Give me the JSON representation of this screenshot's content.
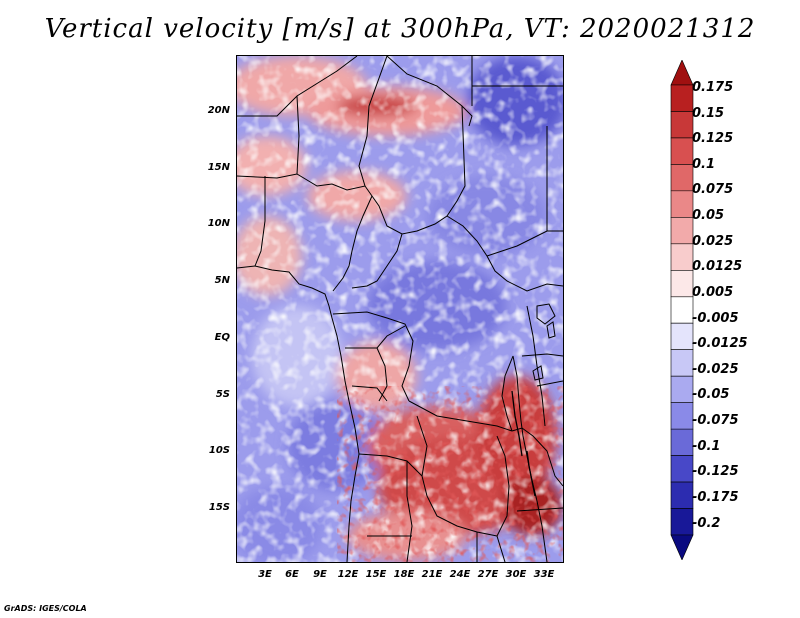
{
  "title": "Vertical velocity [m/s] at 300hPa, VT: 2020021312",
  "credit": "GrADS: IGES/COLA",
  "lat_labels": [
    "20N",
    "15N",
    "10N",
    "5N",
    "EQ",
    "5S",
    "10S",
    "15S"
  ],
  "lon_labels": [
    "3E",
    "6E",
    "9E",
    "12E",
    "15E",
    "18E",
    "21E",
    "24E",
    "27E",
    "30E",
    "33E"
  ],
  "colorbar": {
    "levels": [
      "0.175",
      "0.15",
      "0.125",
      "0.1",
      "0.075",
      "0.05",
      "0.025",
      "0.0125",
      "0.005",
      "-0.005",
      "-0.0125",
      "-0.025",
      "-0.05",
      "-0.075",
      "-0.1",
      "-0.125",
      "-0.175",
      "-0.2"
    ],
    "colors": [
      "#a01010",
      "#b82020",
      "#c83838",
      "#d85050",
      "#e06868",
      "#ea8888",
      "#f2aaaa",
      "#f8cccc",
      "#fce8e8",
      "#ffffff",
      "#e4e4fc",
      "#c8c8f6",
      "#aaaaf0",
      "#8a8ae8",
      "#6a6ad8",
      "#4848c8",
      "#2c2cb0",
      "#181898",
      "#0a0a80"
    ]
  }
}
